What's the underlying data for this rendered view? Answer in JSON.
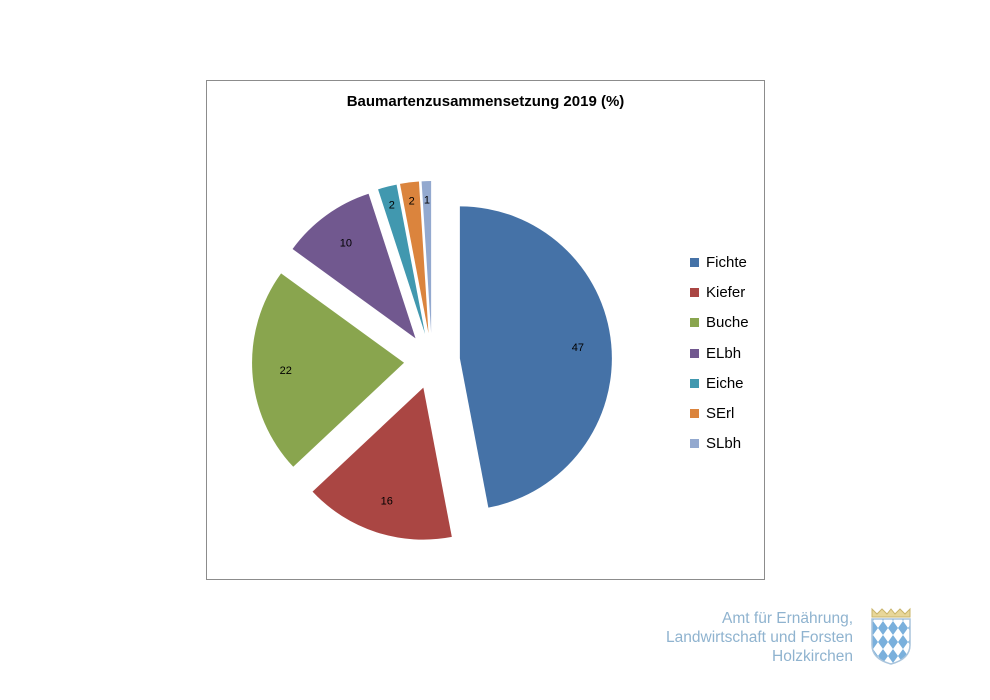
{
  "chart_data": {
    "type": "pie",
    "title": "Baumartenzusammensetzung 2019  (%)",
    "categories": [
      "Fichte",
      "Kiefer",
      "Buche",
      "ELbh",
      "Eiche",
      "SErl",
      "SLbh"
    ],
    "values": [
      47,
      16,
      22,
      10,
      2,
      2,
      1
    ],
    "colors": [
      "#4572a7",
      "#aa4643",
      "#89a54e",
      "#71588f",
      "#4198af",
      "#db843d",
      "#93a9cf"
    ],
    "data_labels": true,
    "legend": "right",
    "exploded": true
  },
  "footer": {
    "lines": [
      "Amt für Ernährung,",
      "Landwirtschaft und Forsten",
      "Holzkirchen"
    ]
  },
  "logo": {
    "name": "bavarian-coat-of-arms-icon"
  }
}
